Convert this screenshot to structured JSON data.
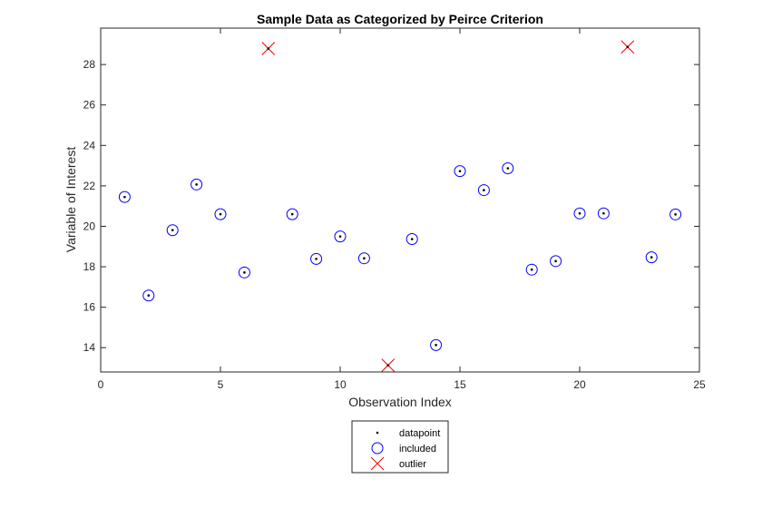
{
  "chart_data": {
    "type": "scatter",
    "title": "Sample Data as Categorized by Peirce Criterion",
    "xlabel": "Observation Index",
    "ylabel": "Variable of Interest",
    "xlim": [
      0,
      25
    ],
    "ylim": [
      12.8,
      29.8
    ],
    "xticks": [
      0,
      5,
      10,
      15,
      20,
      25
    ],
    "yticks": [
      14,
      16,
      18,
      20,
      22,
      24,
      26,
      28
    ],
    "grid": false,
    "legend_position": "below-center",
    "colors": {
      "datapoint": "#000000",
      "included": "#0000ff",
      "outlier": "#ff0000"
    },
    "series": [
      {
        "name": "datapoint",
        "marker": "dot",
        "x": [
          1,
          2,
          3,
          4,
          5,
          6,
          7,
          8,
          9,
          10,
          11,
          12,
          13,
          14,
          15,
          16,
          17,
          18,
          19,
          20,
          21,
          22,
          23,
          24
        ],
        "y": [
          21.45,
          16.58,
          19.81,
          22.07,
          20.6,
          17.72,
          28.79,
          20.6,
          18.39,
          19.5,
          18.42,
          13.13,
          19.37,
          14.13,
          22.73,
          21.79,
          22.87,
          17.86,
          18.28,
          20.64,
          20.64,
          28.87,
          18.47,
          20.59
        ]
      },
      {
        "name": "included",
        "marker": "circle",
        "x": [
          1,
          2,
          3,
          4,
          5,
          6,
          8,
          9,
          10,
          11,
          13,
          14,
          15,
          16,
          17,
          18,
          19,
          20,
          21,
          23,
          24
        ],
        "y": [
          21.45,
          16.58,
          19.81,
          22.07,
          20.6,
          17.72,
          20.6,
          18.39,
          19.5,
          18.42,
          19.37,
          14.13,
          22.73,
          21.79,
          22.87,
          17.86,
          18.28,
          20.64,
          20.64,
          18.47,
          20.59
        ]
      },
      {
        "name": "outlier",
        "marker": "x",
        "x": [
          7,
          12,
          22
        ],
        "y": [
          28.79,
          13.13,
          28.87
        ]
      }
    ]
  }
}
